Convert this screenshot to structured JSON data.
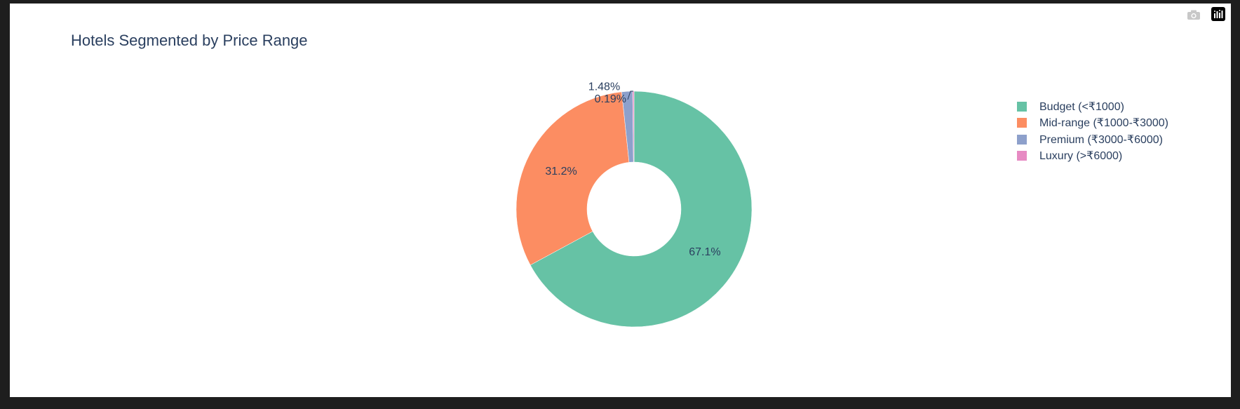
{
  "chart_data": {
    "type": "pie",
    "hole": true,
    "title": "Hotels Segmented by Price Range",
    "categories": [
      "Budget (<₹1000)",
      "Mid-range (₹1000-₹3000)",
      "Premium (₹3000-₹6000)",
      "Luxury (>₹6000)"
    ],
    "values": [
      67.1,
      31.2,
      1.48,
      0.19
    ],
    "labels": [
      "67.1%",
      "31.2%",
      "1.48%",
      "0.19%"
    ],
    "colors": [
      "#66c2a5",
      "#fc8d62",
      "#8da0cb",
      "#e78ac3"
    ],
    "legend_position": "top-right"
  },
  "modebar": {
    "camera_icon": "camera-icon",
    "logo_icon": "plotly-logo-icon"
  }
}
